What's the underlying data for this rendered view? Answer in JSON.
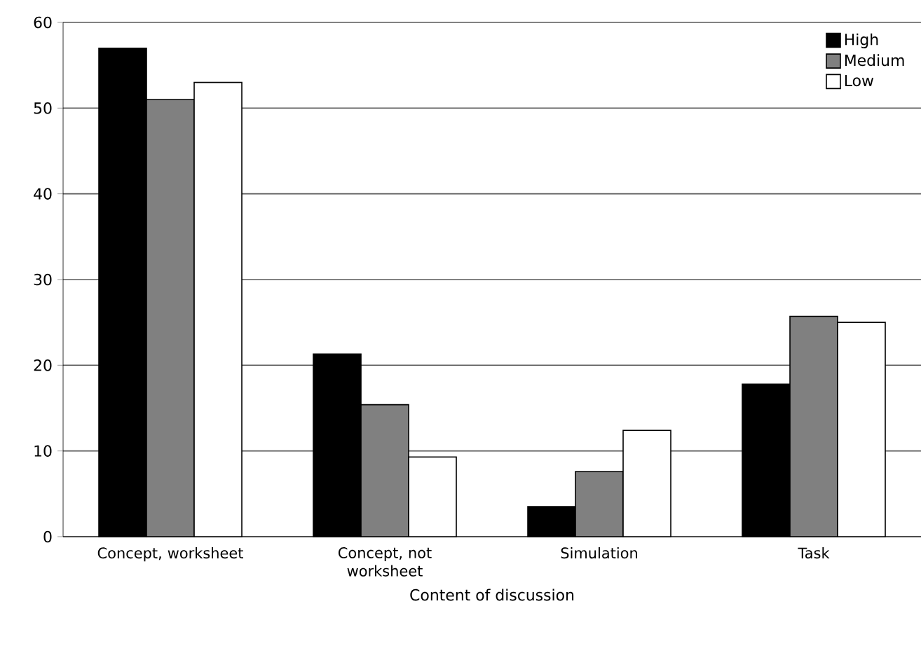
{
  "chart_data": {
    "type": "bar",
    "xlabel": "Content of discussion",
    "categories": [
      "Concept, worksheet",
      "Concept, not worksheet",
      "Simulation",
      "Task"
    ],
    "series": [
      {
        "name": "High",
        "color": "#000000",
        "values": [
          57,
          21.3,
          3.5,
          17.8
        ]
      },
      {
        "name": "Medium",
        "color": "#808080",
        "values": [
          51,
          15.4,
          7.6,
          25.7
        ]
      },
      {
        "name": "Low",
        "color": "#ffffff",
        "values": [
          53,
          9.3,
          12.4,
          25.0
        ]
      }
    ],
    "ylim": [
      0,
      60
    ],
    "yticks": [
      0,
      10,
      20,
      30,
      40,
      50,
      60
    ],
    "grid": "y",
    "legend": "top right"
  }
}
